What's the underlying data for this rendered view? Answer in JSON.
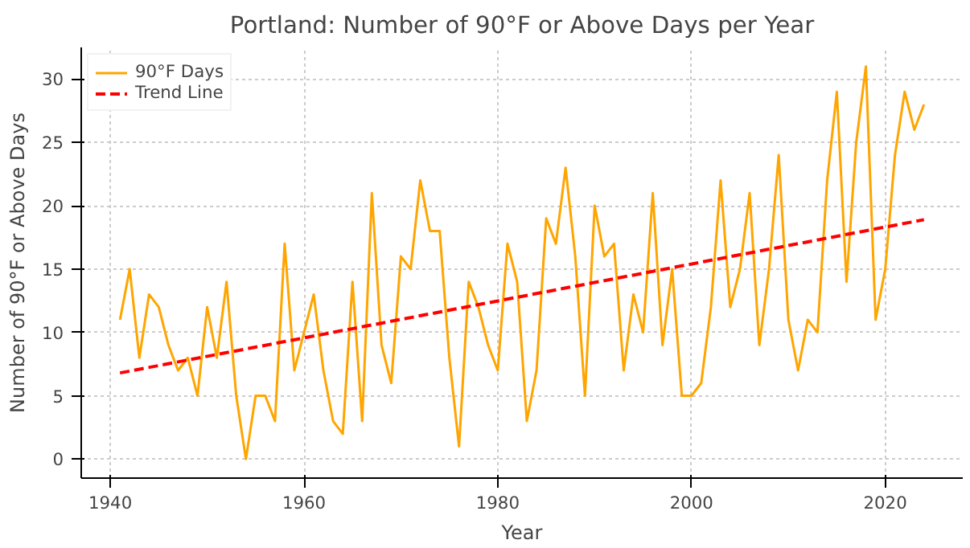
{
  "chart_data": {
    "type": "line",
    "title": "Portland: Number of 90°F or Above Days per Year",
    "xlabel": "Year",
    "ylabel": "Number of 90°F or Above Days",
    "x": [
      1941,
      1942,
      1943,
      1944,
      1945,
      1946,
      1947,
      1948,
      1949,
      1950,
      1951,
      1952,
      1953,
      1954,
      1955,
      1956,
      1957,
      1958,
      1959,
      1960,
      1961,
      1962,
      1963,
      1964,
      1965,
      1966,
      1967,
      1968,
      1969,
      1970,
      1971,
      1972,
      1973,
      1974,
      1975,
      1976,
      1977,
      1978,
      1979,
      1980,
      1981,
      1982,
      1983,
      1984,
      1985,
      1986,
      1987,
      1988,
      1989,
      1990,
      1991,
      1992,
      1993,
      1994,
      1995,
      1996,
      1997,
      1998,
      1999,
      2000,
      2001,
      2002,
      2003,
      2004,
      2005,
      2006,
      2007,
      2008,
      2009,
      2010,
      2011,
      2012,
      2013,
      2014,
      2015,
      2016,
      2017,
      2018,
      2019,
      2020,
      2021,
      2022,
      2023,
      2024
    ],
    "series": [
      {
        "name": "90°F Days",
        "color": "#ffa500",
        "line_style": "solid",
        "values": [
          11,
          15,
          8,
          13,
          12,
          9,
          7,
          8,
          5,
          12,
          8,
          14,
          5,
          0,
          5,
          5,
          3,
          17,
          7,
          10,
          13,
          7,
          3,
          2,
          14,
          3,
          21,
          9,
          6,
          16,
          15,
          22,
          18,
          18,
          8,
          1,
          14,
          12,
          9,
          7,
          17,
          14,
          3,
          7,
          19,
          17,
          23,
          16,
          5,
          20,
          16,
          17,
          7,
          13,
          10,
          21,
          9,
          15,
          5,
          5,
          6,
          12,
          22,
          12,
          15,
          21,
          9,
          15,
          24,
          11,
          7,
          11,
          10,
          22,
          29,
          14,
          25,
          31,
          11,
          15,
          24,
          29,
          26,
          28
        ]
      },
      {
        "name": "Trend Line",
        "color": "#ff0000",
        "line_style": "dashed",
        "x": [
          1941,
          2024
        ],
        "values": [
          6.8,
          18.9
        ]
      }
    ],
    "xlim": [
      1937,
      2028
    ],
    "ylim": [
      -1.5,
      32.5
    ],
    "xticks": [
      1940,
      1960,
      1980,
      2000,
      2020
    ],
    "yticks": [
      0,
      5,
      10,
      15,
      20,
      25,
      30
    ],
    "grid": true,
    "legend": "top left"
  }
}
